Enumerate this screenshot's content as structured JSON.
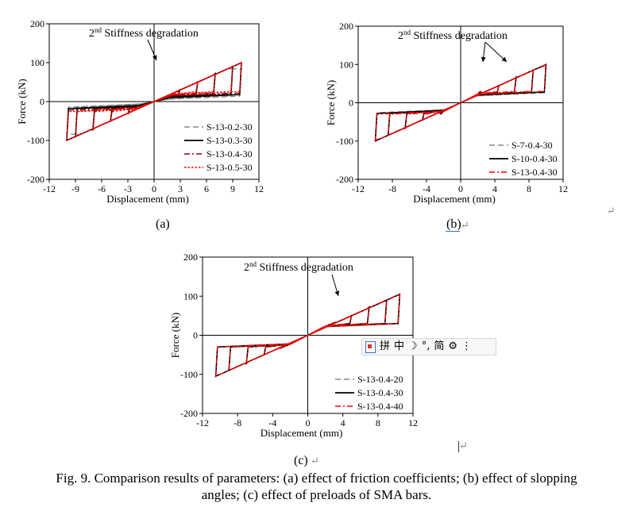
{
  "chart_data": [
    {
      "type": "line",
      "panel": "a",
      "ylabel": "Force (kN)",
      "xlabel": "Displacement (mm)",
      "annotation": {
        "sup_prefix": "2",
        "sup": "nd",
        "text": " Stiffness degradation"
      },
      "xlim": [
        -12,
        12
      ],
      "ylim": [
        -200,
        200
      ],
      "xticks": [
        "-12",
        "-9",
        "-6",
        "-3",
        "0",
        "3",
        "6",
        "9",
        "12"
      ],
      "xtick_values": [
        -12,
        -9,
        -6,
        -3,
        0,
        3,
        6,
        9,
        12
      ],
      "yticks": [
        "200",
        "100",
        "0",
        "-100",
        "-200"
      ],
      "ytick_values": [
        200,
        100,
        0,
        -100,
        -200
      ],
      "legend_position": "bottom-right",
      "series": [
        {
          "name": "S-13-0.2-30",
          "style": "dash",
          "color": "#888888",
          "fy": 22,
          "fpeak": 84,
          "fmin": 6,
          "amps": [
            3,
            5,
            7,
            9,
            10
          ]
        },
        {
          "name": "S-13-0.3-30",
          "style": "solid",
          "color": "#000000",
          "fy": 25,
          "fpeak": 99,
          "fmin": 10,
          "amps": [
            3,
            5,
            7,
            9,
            10
          ]
        },
        {
          "name": "S-13-0.4-30",
          "style": "dashdot",
          "color": "#8b0000",
          "fy": 27,
          "fpeak": 110,
          "fmin": 14,
          "amps": [
            3,
            5,
            7,
            9,
            10
          ]
        },
        {
          "name": "S-13-0.5-30",
          "style": "dot",
          "color": "#ff0000",
          "fy": 30,
          "fpeak": 120,
          "fmin": 18,
          "amps": [
            3,
            5,
            7,
            9,
            10
          ]
        }
      ]
    },
    {
      "type": "line",
      "panel": "b",
      "ylabel": "Force (kN)",
      "xlabel": "Displacement (mm)",
      "annotation": {
        "sup_prefix": "2",
        "sup": "nd",
        "text": " Stiffness degradation"
      },
      "xlim": [
        -12,
        12
      ],
      "ylim": [
        -200,
        200
      ],
      "xticks": [
        "-12",
        "-8",
        "-4",
        "0",
        "4",
        "8",
        "12"
      ],
      "xtick_values": [
        -12,
        -8,
        -4,
        0,
        4,
        8,
        12
      ],
      "yticks": [
        "200",
        "100",
        "0",
        "-100",
        "-200"
      ],
      "ytick_values": [
        200,
        100,
        0,
        -100,
        -200
      ],
      "legend_position": "bottom-right",
      "series": [
        {
          "name": "S-7-0.4-30",
          "style": "dash",
          "color": "#888888",
          "fy": 27,
          "fpeak": 95,
          "fmin": 18,
          "amps": [
            2.5,
            4.5,
            6.5,
            8.5,
            10
          ]
        },
        {
          "name": "S-10-0.4-30",
          "style": "solid",
          "color": "#000000",
          "fy": 27,
          "fpeak": 102,
          "fmin": 20,
          "amps": [
            2.5,
            4.5,
            6.5,
            8.5,
            10
          ]
        },
        {
          "name": "S-13-0.4-30",
          "style": "dashdot",
          "color": "#ff0000",
          "fy": 27,
          "fpeak": 107,
          "fmin": 22,
          "amps": [
            2.5,
            4.5,
            6.5,
            8.5,
            10
          ]
        }
      ]
    },
    {
      "type": "line",
      "panel": "c",
      "ylabel": "Force (kN)",
      "xlabel": "Displacement (mm)",
      "annotation": {
        "sup_prefix": "2",
        "sup": "nd",
        "text": " Stiffness degradation"
      },
      "xlim": [
        -12,
        12
      ],
      "ylim": [
        -200,
        200
      ],
      "xticks": [
        "-12",
        "-8",
        "-4",
        "0",
        "4",
        "8",
        "12"
      ],
      "xtick_values": [
        -12,
        -8,
        -4,
        0,
        4,
        8,
        12
      ],
      "yticks": [
        "200",
        "100",
        "0",
        "-100",
        "-200"
      ],
      "ytick_values": [
        200,
        100,
        0,
        -100,
        -200
      ],
      "legend_position": "bottom-right",
      "series": [
        {
          "name": "S-13-0.4-20",
          "style": "dash",
          "color": "#888888",
          "fy": 27,
          "fpeak": 106,
          "fmin": 22,
          "amps": [
            3,
            5,
            7,
            9,
            10.5
          ]
        },
        {
          "name": "S-13-0.4-30",
          "style": "solid",
          "color": "#000000",
          "fy": 27,
          "fpeak": 107,
          "fmin": 22,
          "amps": [
            3,
            5,
            7,
            9,
            10.5
          ]
        },
        {
          "name": "S-13-0.4-40",
          "style": "dashdot",
          "color": "#ff0000",
          "fy": 27,
          "fpeak": 108,
          "fmin": 22,
          "amps": [
            3,
            5,
            7,
            9,
            10.5
          ]
        }
      ]
    }
  ],
  "sublabels": {
    "a": "(a)",
    "b": "(b)",
    "c": "(c)"
  },
  "caption": {
    "line1": "Fig. 9. Comparison results of parameters: (a) effect of friction coefficients; (b) effect of slopping",
    "line2": "angles; (c) effect of preloads of SMA bars."
  },
  "ime_toolbar": {
    "items": [
      "拼",
      "中",
      "☽",
      "°,",
      "简",
      "⚙",
      "⋮"
    ]
  },
  "marks": {
    "paragraph": "↵"
  }
}
